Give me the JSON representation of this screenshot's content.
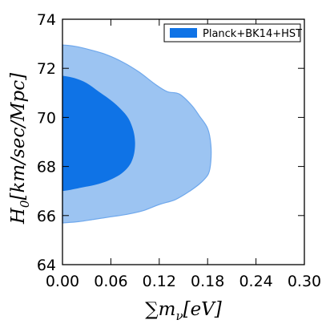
{
  "chart_data": {
    "type": "contour",
    "title": "",
    "xlabel": "∑m_ν[eV]",
    "ylabel": "H_0[km/sec/Mpc]",
    "xlim": [
      0.0,
      0.3
    ],
    "ylim": [
      64,
      74
    ],
    "x_ticks": [
      "0.00",
      "0.06",
      "0.12",
      "0.18",
      "0.24",
      "0.30"
    ],
    "y_ticks": [
      "64",
      "66",
      "68",
      "70",
      "72",
      "74"
    ],
    "grid": false,
    "legend_position": "top-right",
    "series": [
      {
        "name": "Planck+BK14+HST",
        "color": "#0f73e6",
        "outer_color": "#9cc4f2",
        "outer_edge": "#6fa8ec",
        "contours": [
          {
            "level": "95%",
            "points": [
              [
                0.0,
                72.95
              ],
              [
                0.015,
                72.9
              ],
              [
                0.035,
                72.75
              ],
              [
                0.055,
                72.55
              ],
              [
                0.075,
                72.25
              ],
              [
                0.095,
                71.85
              ],
              [
                0.115,
                71.35
              ],
              [
                0.13,
                71.05
              ],
              [
                0.145,
                70.95
              ],
              [
                0.16,
                70.5
              ],
              [
                0.17,
                70.05
              ],
              [
                0.18,
                69.55
              ],
              [
                0.184,
                68.9
              ],
              [
                0.184,
                68.2
              ],
              [
                0.181,
                67.7
              ],
              [
                0.172,
                67.35
              ],
              [
                0.158,
                67.0
              ],
              [
                0.14,
                66.65
              ],
              [
                0.12,
                66.45
              ],
              [
                0.1,
                66.2
              ],
              [
                0.08,
                66.05
              ],
              [
                0.06,
                65.95
              ],
              [
                0.04,
                65.85
              ],
              [
                0.02,
                65.75
              ],
              [
                0.0,
                65.7
              ]
            ]
          },
          {
            "level": "68%",
            "points": [
              [
                0.0,
                71.7
              ],
              [
                0.015,
                71.6
              ],
              [
                0.03,
                71.4
              ],
              [
                0.045,
                71.05
              ],
              [
                0.06,
                70.7
              ],
              [
                0.072,
                70.35
              ],
              [
                0.082,
                69.95
              ],
              [
                0.088,
                69.45
              ],
              [
                0.09,
                69.0
              ],
              [
                0.089,
                68.55
              ],
              [
                0.085,
                68.15
              ],
              [
                0.078,
                67.85
              ],
              [
                0.068,
                67.6
              ],
              [
                0.055,
                67.4
              ],
              [
                0.04,
                67.25
              ],
              [
                0.025,
                67.15
              ],
              [
                0.01,
                67.05
              ],
              [
                0.0,
                67.0
              ]
            ]
          }
        ]
      }
    ]
  }
}
